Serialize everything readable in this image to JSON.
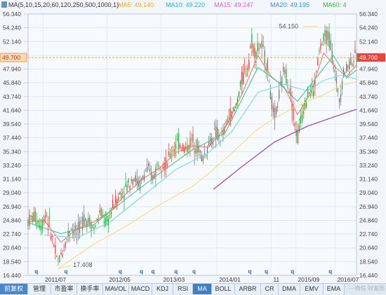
{
  "legend": {
    "indicator": "MA(5,10,15,20,60,120,250,500,1000,1)",
    "items": [
      {
        "label": "MA5: 49.140",
        "color": "#f5a623"
      },
      {
        "label": "MA10: 49.220",
        "color": "#1fb5d6"
      },
      {
        "label": "MA15: 49.247",
        "color": "#e05ad8"
      },
      {
        "label": "MA20: 49.195",
        "color": "#2f8fdd"
      },
      {
        "label": "MA60: 4",
        "color": "#3cb043"
      }
    ]
  },
  "price_tag": "49.700",
  "watermark": "—微信 财富图",
  "tabs": [
    {
      "label": "前复权",
      "state": "first"
    },
    {
      "label": "管理",
      "state": "normal"
    },
    {
      "label": "市盈率",
      "state": "normal"
    },
    {
      "label": "换手率",
      "state": "normal"
    },
    {
      "label": "MAVOL",
      "state": "normal"
    },
    {
      "label": "MACD",
      "state": "normal"
    },
    {
      "label": "KDJ",
      "state": "normal"
    },
    {
      "label": "RSI",
      "state": "normal"
    },
    {
      "label": "MA",
      "state": "active"
    },
    {
      "label": "BOLL",
      "state": "normal"
    },
    {
      "label": "ARBR",
      "state": "normal"
    },
    {
      "label": "CR",
      "state": "normal"
    },
    {
      "label": "DMA",
      "state": "normal"
    },
    {
      "label": "EMV",
      "state": "normal"
    },
    {
      "label": "EMA",
      "state": "normal"
    }
  ],
  "chart_data": {
    "type": "candlestick",
    "y_ticks": [
      "56.340",
      "54.240",
      "52.140",
      "50.040",
      "47.940",
      "45.840",
      "43.740",
      "41.640",
      "39.540",
      "37.440",
      "35.340",
      "33.240",
      "31.140",
      "29.040",
      "26.940",
      "24.840",
      "22.740",
      "20.640",
      "18.540",
      "16.440"
    ],
    "ylim": [
      16.44,
      56.34
    ],
    "x_ticks": [
      "2011/07",
      "2012/05",
      "2013/03",
      "2014/01",
      "11",
      "2015/09",
      "2016/07"
    ],
    "last_price": 49.7,
    "annotations": [
      {
        "text": "54.150",
        "kind": "high",
        "x": 0.875,
        "value": 54.15
      },
      {
        "text": "17.408",
        "kind": "low",
        "x": 0.09,
        "value": 17.408
      }
    ],
    "dividend_markers": {
      "label": "q",
      "x": [
        0.02,
        0.11,
        0.275,
        0.34,
        0.375,
        0.445,
        0.5,
        0.67,
        0.72,
        0.8,
        0.915
      ]
    },
    "series_colors": {
      "up": "#e03a3a",
      "down": "#2a9d3a"
    },
    "price_path": [
      [
        0,
        24.8
      ],
      [
        0.02,
        25.5
      ],
      [
        0.04,
        24.0
      ],
      [
        0.055,
        26.2
      ],
      [
        0.07,
        23.0
      ],
      [
        0.09,
        18.2
      ],
      [
        0.11,
        20.8
      ],
      [
        0.13,
        24.0
      ],
      [
        0.15,
        22.8
      ],
      [
        0.17,
        25.3
      ],
      [
        0.19,
        24.6
      ],
      [
        0.2,
        23.4
      ],
      [
        0.22,
        26.0
      ],
      [
        0.24,
        24.3
      ],
      [
        0.26,
        27.2
      ],
      [
        0.28,
        28.8
      ],
      [
        0.3,
        29.9
      ],
      [
        0.32,
        31.6
      ],
      [
        0.34,
        30.2
      ],
      [
        0.36,
        32.6
      ],
      [
        0.38,
        31.4
      ],
      [
        0.4,
        34.1
      ],
      [
        0.42,
        33.2
      ],
      [
        0.44,
        35.8
      ],
      [
        0.46,
        36.8
      ],
      [
        0.48,
        35.6
      ],
      [
        0.5,
        37.2
      ],
      [
        0.52,
        35.8
      ],
      [
        0.53,
        34.1
      ],
      [
        0.55,
        36.4
      ],
      [
        0.57,
        38.2
      ],
      [
        0.59,
        37.2
      ],
      [
        0.61,
        40.6
      ],
      [
        0.63,
        41.6
      ],
      [
        0.65,
        46.2
      ],
      [
        0.67,
        48.6
      ],
      [
        0.68,
        52.4
      ],
      [
        0.69,
        50.6
      ],
      [
        0.71,
        51.6
      ],
      [
        0.73,
        48.1
      ],
      [
        0.74,
        43.2
      ],
      [
        0.75,
        40.3
      ],
      [
        0.77,
        45.2
      ],
      [
        0.78,
        48.2
      ],
      [
        0.79,
        46.2
      ],
      [
        0.8,
        44.2
      ],
      [
        0.81,
        40.3
      ],
      [
        0.82,
        37.4
      ],
      [
        0.84,
        42.6
      ],
      [
        0.86,
        45.2
      ],
      [
        0.87,
        44.2
      ],
      [
        0.88,
        48.6
      ],
      [
        0.89,
        51.3
      ],
      [
        0.91,
        53.2
      ],
      [
        0.92,
        52.1
      ],
      [
        0.93,
        48.7
      ],
      [
        0.94,
        45.3
      ],
      [
        0.95,
        43.6
      ],
      [
        0.96,
        47.2
      ],
      [
        0.97,
        48.2
      ],
      [
        0.985,
        49.4
      ],
      [
        1.0,
        49.7
      ]
    ],
    "ma_lines": [
      {
        "color": "#ff6a5a",
        "width": 1,
        "pts": [
          [
            0,
            24.6
          ],
          [
            0.05,
            24.8
          ],
          [
            0.1,
            21.5
          ],
          [
            0.15,
            23.6
          ],
          [
            0.2,
            24.6
          ],
          [
            0.25,
            26.2
          ],
          [
            0.3,
            29.0
          ],
          [
            0.35,
            31.2
          ],
          [
            0.4,
            32.8
          ],
          [
            0.45,
            35.2
          ],
          [
            0.5,
            36.2
          ],
          [
            0.55,
            36.0
          ],
          [
            0.6,
            39.0
          ],
          [
            0.65,
            44.0
          ],
          [
            0.7,
            50.0
          ],
          [
            0.74,
            46.8
          ],
          [
            0.78,
            45.2
          ],
          [
            0.82,
            41.0
          ],
          [
            0.86,
            44.2
          ],
          [
            0.9,
            50.4
          ],
          [
            0.94,
            48.0
          ],
          [
            0.97,
            46.8
          ],
          [
            1.0,
            48.6
          ]
        ]
      },
      {
        "color": "#32c28c",
        "width": 1,
        "pts": [
          [
            0,
            24.5
          ],
          [
            0.1,
            22.8
          ],
          [
            0.2,
            24.2
          ],
          [
            0.3,
            28.2
          ],
          [
            0.4,
            32.0
          ],
          [
            0.5,
            35.6
          ],
          [
            0.6,
            38.2
          ],
          [
            0.7,
            48.2
          ],
          [
            0.76,
            46.0
          ],
          [
            0.82,
            43.0
          ],
          [
            0.88,
            46.8
          ],
          [
            0.93,
            50.0
          ],
          [
            0.97,
            46.6
          ],
          [
            1.0,
            47.8
          ]
        ]
      },
      {
        "color": "#5ed9ec",
        "width": 1,
        "pts": [
          [
            0.05,
            22.6
          ],
          [
            0.15,
            22.2
          ],
          [
            0.25,
            24.6
          ],
          [
            0.35,
            28.6
          ],
          [
            0.45,
            32.6
          ],
          [
            0.55,
            35.2
          ],
          [
            0.62,
            38.4
          ],
          [
            0.7,
            44.4
          ],
          [
            0.78,
            45.6
          ],
          [
            0.85,
            44.6
          ],
          [
            0.9,
            46.2
          ],
          [
            0.95,
            47.0
          ],
          [
            1.0,
            46.4
          ]
        ]
      },
      {
        "color": "#f5d77a",
        "width": 1,
        "pts": [
          [
            0.09,
            17.4
          ],
          [
            0.2,
            21.2
          ],
          [
            0.3,
            24.0
          ],
          [
            0.4,
            27.2
          ],
          [
            0.5,
            30.0
          ],
          [
            0.55,
            32.0
          ],
          [
            0.6,
            34.2
          ],
          [
            0.65,
            36.5
          ],
          [
            0.7,
            38.8
          ],
          [
            0.75,
            40.4
          ],
          [
            0.8,
            41.8
          ],
          [
            0.85,
            43.0
          ],
          [
            0.9,
            44.0
          ],
          [
            0.95,
            45.4
          ],
          [
            1.0,
            46.0
          ]
        ]
      },
      {
        "color": "#8a3ed4",
        "width": 1.2,
        "pts": [
          [
            0.565,
            29.6
          ],
          [
            0.65,
            33.0
          ],
          [
            0.75,
            36.8
          ],
          [
            0.85,
            39.2
          ],
          [
            0.93,
            40.6
          ],
          [
            1.0,
            41.8
          ]
        ]
      }
    ]
  }
}
